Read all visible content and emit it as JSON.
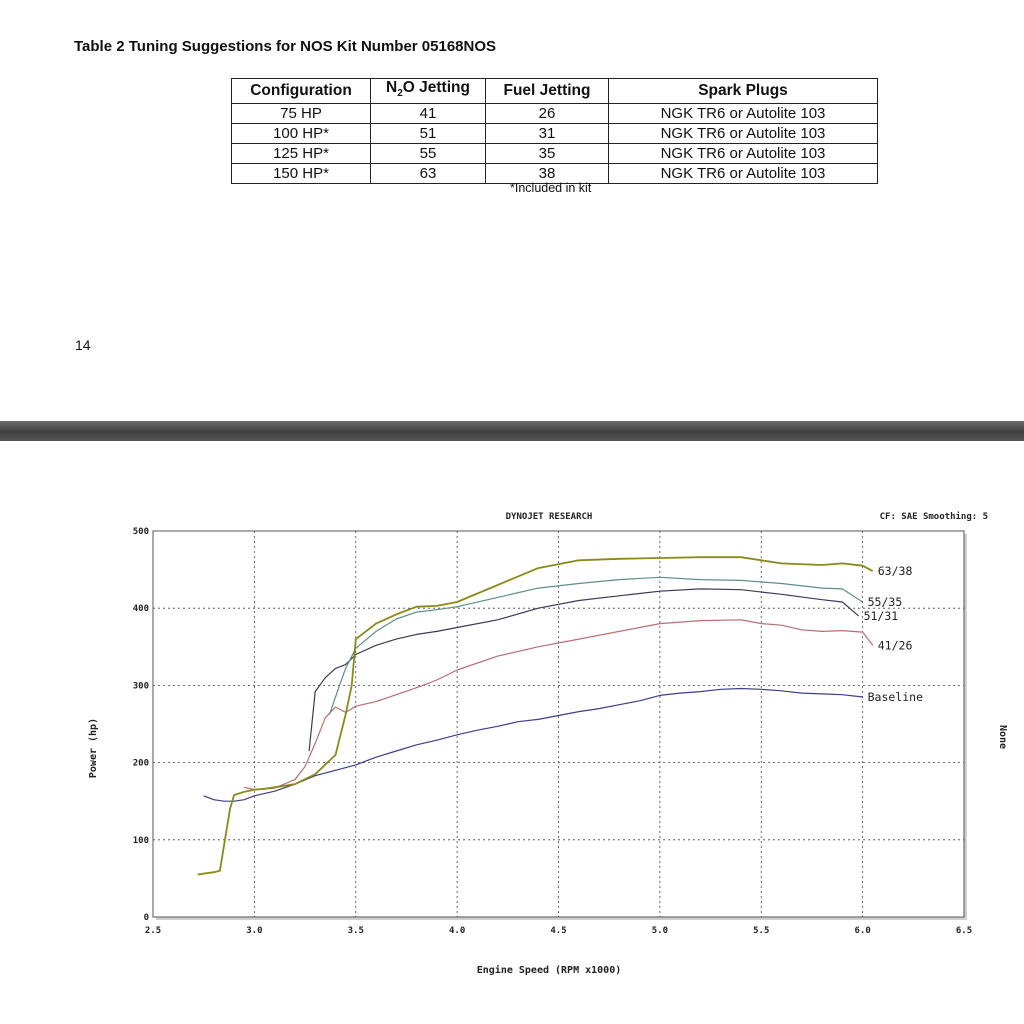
{
  "document": {
    "table_title": "Table 2  Tuning Suggestions for NOS Kit Number 05168NOS",
    "table": {
      "headers": {
        "configuration": "Configuration",
        "n2o_prefix": "N",
        "n2o_sub": "2",
        "n2o_suffix": "O Jetting",
        "fuel": "Fuel Jetting",
        "plugs": "Spark Plugs"
      },
      "rows": [
        {
          "configuration": "75 HP",
          "n2o": "41",
          "fuel": "26",
          "plugs": "NGK TR6 or Autolite 103"
        },
        {
          "configuration": "100 HP*",
          "n2o": "51",
          "fuel": "31",
          "plugs": "NGK TR6 or Autolite 103"
        },
        {
          "configuration": "125 HP*",
          "n2o": "55",
          "fuel": "35",
          "plugs": "NGK TR6 or Autolite 103"
        },
        {
          "configuration": "150 HP*",
          "n2o": "63",
          "fuel": "38",
          "plugs": "NGK TR6 or Autolite 103"
        }
      ],
      "footnote": "*Included in kit"
    },
    "page_number": "14"
  },
  "chart_data": {
    "type": "line",
    "title": "DYNOJET RESEARCH",
    "subtitle": "CF: SAE  Smoothing: 5",
    "xlabel": "Engine Speed (RPM x1000)",
    "ylabel": "Power (hp)",
    "right_label": "None",
    "xlim": [
      2.5,
      6.5
    ],
    "ylim": [
      0,
      500
    ],
    "xticks": [
      2.5,
      3.0,
      3.5,
      4.0,
      4.5,
      5.0,
      5.5,
      6.0,
      6.5
    ],
    "xtick_labels": [
      "2.5",
      "3.0",
      "3.5",
      "4.0",
      "4.5",
      "5.0",
      "5.5",
      "6.0",
      "6.5"
    ],
    "yticks": [
      0,
      100,
      200,
      300,
      400,
      500
    ],
    "ytick_labels": [
      "0",
      "100",
      "200",
      "300",
      "400",
      "500"
    ],
    "grid": true,
    "series": [
      {
        "name": "Baseline",
        "color": "#3b3f8c",
        "x": [
          2.75,
          2.8,
          2.85,
          2.9,
          2.95,
          3.0,
          3.1,
          3.2,
          3.3,
          3.4,
          3.5,
          3.6,
          3.7,
          3.8,
          3.9,
          4.0,
          4.1,
          4.2,
          4.3,
          4.4,
          4.5,
          4.6,
          4.7,
          4.8,
          4.9,
          5.0,
          5.1,
          5.2,
          5.3,
          5.4,
          5.5,
          5.6,
          5.7,
          5.8,
          5.9,
          6.0
        ],
        "y": [
          157,
          152,
          150,
          150,
          152,
          157,
          163,
          172,
          183,
          190,
          197,
          207,
          215,
          223,
          229,
          236,
          242,
          247,
          253,
          256,
          261,
          266,
          270,
          275,
          280,
          287,
          290,
          292,
          295,
          296,
          295,
          293,
          290,
          289,
          288,
          285
        ]
      },
      {
        "name": "41/26",
        "color": "#b86e74",
        "x": [
          2.95,
          3.0,
          3.1,
          3.2,
          3.25,
          3.3,
          3.35,
          3.4,
          3.45,
          3.5,
          3.6,
          3.7,
          3.8,
          3.9,
          4.0,
          4.2,
          4.4,
          4.6,
          4.8,
          5.0,
          5.2,
          5.4,
          5.5,
          5.6,
          5.7,
          5.8,
          5.9,
          6.0,
          6.05
        ],
        "y": [
          168,
          165,
          167,
          178,
          195,
          225,
          258,
          272,
          265,
          273,
          279,
          288,
          297,
          307,
          320,
          338,
          350,
          360,
          370,
          380,
          384,
          385,
          380,
          378,
          372,
          370,
          371,
          369,
          352
        ]
      },
      {
        "name": "51/31",
        "color": "#3a3c55",
        "x": [
          3.27,
          3.3,
          3.35,
          3.4,
          3.45,
          3.5,
          3.6,
          3.7,
          3.8,
          3.9,
          4.0,
          4.2,
          4.4,
          4.6,
          4.8,
          5.0,
          5.2,
          5.4,
          5.6,
          5.8,
          5.9,
          5.98
        ],
        "y": [
          215,
          292,
          310,
          322,
          327,
          340,
          352,
          360,
          366,
          370,
          375,
          385,
          400,
          410,
          416,
          422,
          425,
          424,
          418,
          411,
          408,
          390
        ]
      },
      {
        "name": "55/35",
        "color": "#5e8e8a",
        "x": [
          3.37,
          3.42,
          3.45,
          3.5,
          3.6,
          3.7,
          3.8,
          3.9,
          4.0,
          4.2,
          4.4,
          4.6,
          4.8,
          5.0,
          5.2,
          5.4,
          5.6,
          5.8,
          5.9,
          6.0
        ],
        "y": [
          262,
          300,
          322,
          348,
          370,
          386,
          395,
          398,
          402,
          414,
          426,
          432,
          437,
          440,
          437,
          436,
          432,
          426,
          425,
          408
        ]
      },
      {
        "name": "63/38",
        "color": "#8a8a1c",
        "x": [
          2.72,
          2.8,
          2.83,
          2.88,
          2.9,
          2.95,
          3.0,
          3.05,
          3.1,
          3.2,
          3.3,
          3.4,
          3.45,
          3.48,
          3.5,
          3.6,
          3.7,
          3.8,
          3.9,
          4.0,
          4.2,
          4.4,
          4.6,
          4.8,
          5.0,
          5.2,
          5.4,
          5.6,
          5.8,
          5.9,
          6.0,
          6.05
        ],
        "y": [
          55,
          58,
          60,
          140,
          158,
          162,
          165,
          166,
          168,
          172,
          185,
          210,
          262,
          300,
          360,
          380,
          392,
          402,
          403,
          408,
          430,
          452,
          462,
          464,
          465,
          466,
          466,
          458,
          456,
          458,
          455,
          448
        ]
      }
    ]
  }
}
